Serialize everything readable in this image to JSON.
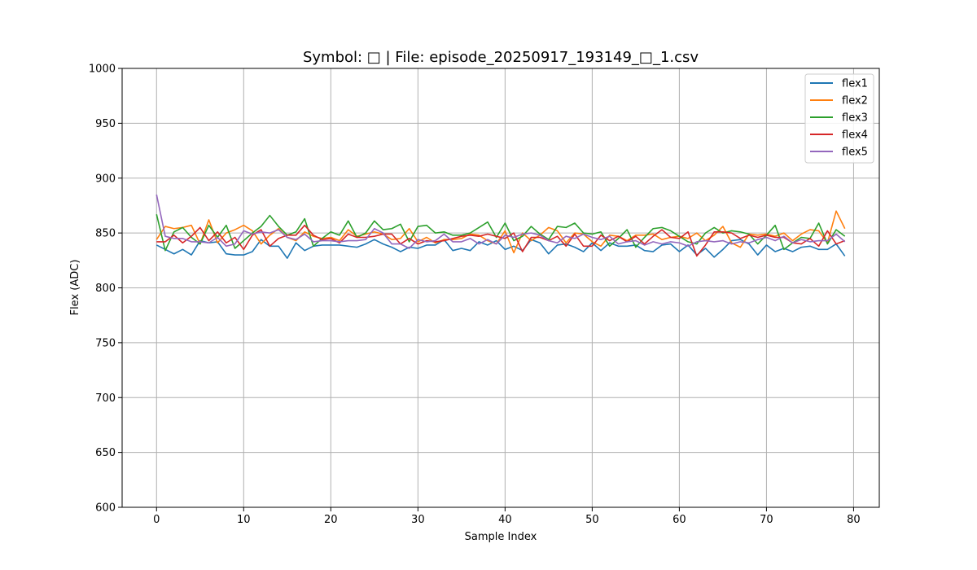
{
  "chart_data": {
    "type": "line",
    "title": "Symbol: □ | File: episode_20250917_193149_□_1.csv",
    "xlabel": "Sample Index",
    "ylabel": "Flex (ADC)",
    "xlim": [
      -3.95,
      82.95
    ],
    "ylim": [
      600,
      1000
    ],
    "xticks": [
      0,
      10,
      20,
      30,
      40,
      50,
      60,
      70,
      80
    ],
    "yticks": [
      600,
      650,
      700,
      750,
      800,
      850,
      900,
      950,
      1000
    ],
    "grid": true,
    "legend_position": "top-right",
    "x": [
      0,
      1,
      2,
      3,
      4,
      5,
      6,
      7,
      8,
      9,
      10,
      11,
      12,
      13,
      14,
      15,
      16,
      17,
      18,
      19,
      20,
      21,
      22,
      23,
      24,
      25,
      26,
      27,
      28,
      29,
      30,
      31,
      32,
      33,
      34,
      35,
      36,
      37,
      38,
      39,
      40,
      41,
      42,
      43,
      44,
      45,
      46,
      47,
      48,
      49,
      50,
      51,
      52,
      53,
      54,
      55,
      56,
      57,
      58,
      59,
      60,
      61,
      62,
      63,
      64,
      65,
      66,
      67,
      68,
      69,
      70,
      71,
      72,
      73,
      74,
      75,
      76,
      77,
      78,
      79
    ],
    "series": [
      {
        "name": "flex1",
        "color": "#1f77b4",
        "values": [
          839,
          835,
          831,
          835,
          830,
          843,
          841,
          842,
          831,
          830,
          830,
          833,
          844,
          838,
          838,
          827,
          841,
          834,
          838,
          839,
          839,
          839,
          838,
          837,
          840,
          844,
          840,
          837,
          833,
          837,
          836,
          839,
          839,
          844,
          834,
          836,
          834,
          842,
          839,
          843,
          835,
          838,
          834,
          844,
          841,
          831,
          839,
          840,
          837,
          833,
          841,
          834,
          841,
          838,
          838,
          839,
          834,
          833,
          839,
          840,
          833,
          839,
          830,
          836,
          828,
          835,
          843,
          844,
          840,
          830,
          839,
          833,
          836,
          833,
          837,
          838,
          835,
          835,
          840,
          829
        ]
      },
      {
        "name": "flex2",
        "color": "#ff7f0e",
        "values": [
          844,
          856,
          854,
          855,
          857,
          840,
          862,
          841,
          850,
          853,
          857,
          852,
          840,
          848,
          854,
          846,
          843,
          851,
          847,
          845,
          846,
          843,
          853,
          847,
          849,
          851,
          849,
          844,
          845,
          854,
          842,
          846,
          841,
          844,
          844,
          845,
          849,
          848,
          843,
          840,
          852,
          832,
          850,
          843,
          848,
          855,
          852,
          841,
          850,
          849,
          842,
          838,
          848,
          847,
          843,
          848,
          848,
          849,
          844,
          846,
          847,
          845,
          850,
          843,
          848,
          856,
          841,
          837,
          849,
          848,
          849,
          847,
          850,
          843,
          849,
          853,
          852,
          841,
          870,
          854
        ]
      },
      {
        "name": "flex3",
        "color": "#2ca02c",
        "values": [
          867,
          834,
          851,
          855,
          846,
          840,
          857,
          846,
          857,
          836,
          843,
          850,
          856,
          866,
          856,
          848,
          851,
          863,
          838,
          845,
          851,
          848,
          861,
          846,
          850,
          861,
          853,
          854,
          858,
          842,
          856,
          857,
          850,
          851,
          848,
          848,
          850,
          855,
          860,
          846,
          859,
          843,
          847,
          856,
          849,
          844,
          856,
          855,
          859,
          850,
          849,
          851,
          838,
          845,
          853,
          837,
          846,
          854,
          855,
          852,
          847,
          842,
          840,
          850,
          855,
          850,
          852,
          851,
          849,
          840,
          848,
          857,
          835,
          841,
          846,
          845,
          859,
          840,
          853,
          847
        ]
      },
      {
        "name": "flex4",
        "color": "#d62728",
        "values": [
          842,
          842,
          848,
          841,
          847,
          855,
          843,
          851,
          841,
          846,
          835,
          848,
          853,
          838,
          845,
          848,
          848,
          857,
          848,
          844,
          845,
          841,
          849,
          846,
          846,
          847,
          849,
          849,
          840,
          845,
          840,
          843,
          842,
          843,
          845,
          847,
          848,
          847,
          849,
          847,
          845,
          850,
          833,
          846,
          846,
          843,
          847,
          838,
          849,
          838,
          838,
          848,
          843,
          847,
          842,
          847,
          840,
          847,
          853,
          846,
          845,
          851,
          829,
          839,
          851,
          851,
          850,
          845,
          848,
          846,
          848,
          846,
          846,
          841,
          840,
          845,
          838,
          852,
          840,
          843
        ]
      },
      {
        "name": "flex5",
        "color": "#9467bd",
        "values": [
          885,
          847,
          845,
          845,
          842,
          842,
          841,
          846,
          838,
          840,
          852,
          849,
          851,
          850,
          853,
          846,
          844,
          849,
          842,
          843,
          843,
          842,
          843,
          843,
          844,
          854,
          850,
          840,
          840,
          836,
          844,
          842,
          843,
          849,
          842,
          842,
          845,
          840,
          844,
          840,
          848,
          846,
          849,
          850,
          848,
          843,
          841,
          847,
          845,
          849,
          846,
          844,
          847,
          840,
          842,
          843,
          839,
          842,
          840,
          842,
          841,
          838,
          842,
          843,
          842,
          843,
          840,
          842,
          841,
          844,
          846,
          843,
          847,
          841,
          844,
          842,
          843,
          843,
          849,
          842
        ]
      }
    ]
  }
}
